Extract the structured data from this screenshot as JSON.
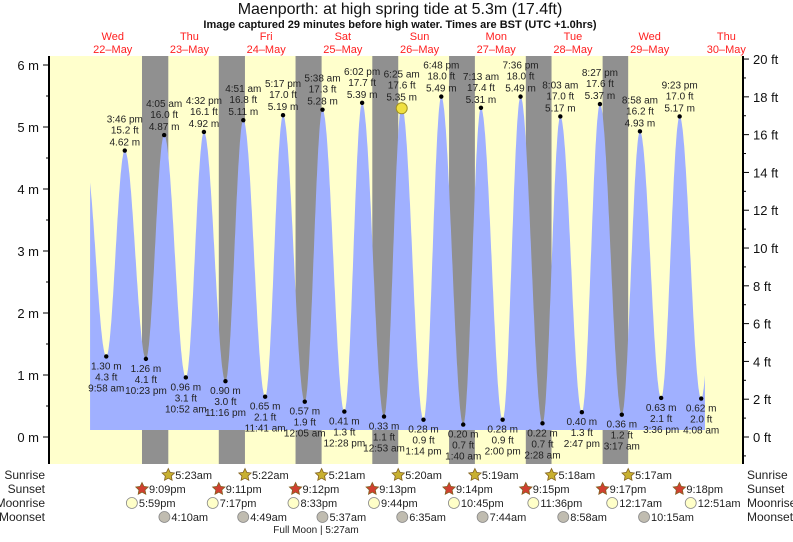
{
  "chart_data": {
    "type": "line",
    "title": "Maenporth: at high  spring tide at 5.3m (17.4ft)",
    "subtitle": "Image captured 29 minutes before high water. Times are BST (UTC +1.0hrs)",
    "days": [
      {
        "name": "Wed",
        "date": "22–May"
      },
      {
        "name": "Thu",
        "date": "23–May"
      },
      {
        "name": "Fri",
        "date": "24–May"
      },
      {
        "name": "Sat",
        "date": "25–May"
      },
      {
        "name": "Sun",
        "date": "26–May"
      },
      {
        "name": "Mon",
        "date": "27–May"
      },
      {
        "name": "Tue",
        "date": "28–May"
      },
      {
        "name": "Wed",
        "date": "29–May"
      },
      {
        "name": "Thu",
        "date": "30–May"
      }
    ],
    "y_left": {
      "unit": "m",
      "ticks": [
        "0 m",
        "1 m",
        "2 m",
        "3 m",
        "4 m",
        "5 m",
        "6 m"
      ],
      "range_m": [
        -0.45,
        6.15
      ]
    },
    "y_right": {
      "unit": "ft",
      "ticks": [
        "0 ft",
        "2 ft",
        "4 ft",
        "6 ft",
        "8 ft",
        "10 ft",
        "12 ft",
        "14 ft",
        "16 ft",
        "18 ft",
        "20 ft"
      ]
    },
    "tides": [
      {
        "type": "low",
        "day": 0,
        "time": "9:58 am",
        "m": "1.30 m",
        "ft": "4.3 ft",
        "v": 1.3
      },
      {
        "type": "high",
        "day": 0,
        "time": "3:46 pm",
        "m": "4.62 m",
        "ft": "15.2 ft",
        "v": 4.62
      },
      {
        "type": "low",
        "day": 0,
        "time": "10:23 pm",
        "m": "1.26 m",
        "ft": "4.1 ft",
        "v": 1.26
      },
      {
        "type": "high",
        "day": 1,
        "time": "4:05 am",
        "m": "4.87 m",
        "ft": "16.0 ft",
        "v": 4.87
      },
      {
        "type": "low",
        "day": 1,
        "time": "10:52 am",
        "m": "0.96 m",
        "ft": "3.1 ft",
        "v": 0.96
      },
      {
        "type": "high",
        "day": 1,
        "time": "4:32 pm",
        "m": "4.92 m",
        "ft": "16.1 ft",
        "v": 4.92
      },
      {
        "type": "low",
        "day": 1,
        "time": "11:16 pm",
        "m": "0.90 m",
        "ft": "3.0 ft",
        "v": 0.9
      },
      {
        "type": "high",
        "day": 2,
        "time": "4:51 am",
        "m": "5.11 m",
        "ft": "16.8 ft",
        "v": 5.11
      },
      {
        "type": "low",
        "day": 2,
        "time": "11:41 am",
        "m": "0.65 m",
        "ft": "2.1 ft",
        "v": 0.65
      },
      {
        "type": "high",
        "day": 2,
        "time": "5:17 pm",
        "m": "5.19 m",
        "ft": "17.0 ft",
        "v": 5.19
      },
      {
        "type": "low",
        "day": 3,
        "time": "12:05 am",
        "m": "0.57 m",
        "ft": "1.9 ft",
        "v": 0.57
      },
      {
        "type": "high",
        "day": 3,
        "time": "5:38 am",
        "m": "5.28 m",
        "ft": "17.3 ft",
        "v": 5.28
      },
      {
        "type": "low",
        "day": 3,
        "time": "12:28 pm",
        "m": "0.41 m",
        "ft": "1.3 ft",
        "v": 0.41
      },
      {
        "type": "high",
        "day": 3,
        "time": "6:02 pm",
        "m": "5.39 m",
        "ft": "17.7 ft",
        "v": 5.39
      },
      {
        "type": "low",
        "day": 4,
        "time": "12:53 am",
        "m": "0.33 m",
        "ft": "1.1 ft",
        "v": 0.33
      },
      {
        "type": "high",
        "day": 4,
        "time": "6:25 am",
        "m": "5.35 m",
        "ft": "17.6 ft",
        "v": 5.35
      },
      {
        "type": "low",
        "day": 4,
        "time": "1:14 pm",
        "m": "0.28 m",
        "ft": "0.9 ft",
        "v": 0.28
      },
      {
        "type": "high",
        "day": 4,
        "time": "6:48 pm",
        "m": "5.49 m",
        "ft": "18.0 ft",
        "v": 5.49
      },
      {
        "type": "low",
        "day": 5,
        "time": "1:40 am",
        "m": "0.20 m",
        "ft": "0.7 ft",
        "v": 0.2
      },
      {
        "type": "high",
        "day": 5,
        "time": "7:13 am",
        "m": "5.31 m",
        "ft": "17.4 ft",
        "v": 5.31
      },
      {
        "type": "low",
        "day": 5,
        "time": "2:00 pm",
        "m": "0.28 m",
        "ft": "0.9 ft",
        "v": 0.28
      },
      {
        "type": "high",
        "day": 5,
        "time": "7:36 pm",
        "m": "5.49 m",
        "ft": "18.0 ft",
        "v": 5.49
      },
      {
        "type": "low",
        "day": 6,
        "time": "2:28 am",
        "m": "0.22 m",
        "ft": "0.7 ft",
        "v": 0.22
      },
      {
        "type": "high",
        "day": 6,
        "time": "8:03 am",
        "m": "5.17 m",
        "ft": "17.0 ft",
        "v": 5.17
      },
      {
        "type": "low",
        "day": 6,
        "time": "2:47 pm",
        "m": "0.40 m",
        "ft": "1.3 ft",
        "v": 0.4
      },
      {
        "type": "high",
        "day": 6,
        "time": "8:27 pm",
        "m": "5.37 m",
        "ft": "17.6 ft",
        "v": 5.37
      },
      {
        "type": "low",
        "day": 7,
        "time": "3:17 am",
        "m": "0.36 m",
        "ft": "1.2 ft",
        "v": 0.36
      },
      {
        "type": "high",
        "day": 7,
        "time": "8:58 am",
        "m": "4.93 m",
        "ft": "16.2 ft",
        "v": 4.93
      },
      {
        "type": "low",
        "day": 7,
        "time": "3:36 pm",
        "m": "0.63 m",
        "ft": "2.1 ft",
        "v": 0.63
      },
      {
        "type": "high",
        "day": 7,
        "time": "9:23 pm",
        "m": "5.17 m",
        "ft": "17.0 ft",
        "v": 5.17
      },
      {
        "type": "low",
        "day": 8,
        "time": "4:08 am",
        "m": "0.62 m",
        "ft": "2.0 ft",
        "v": 0.62
      }
    ],
    "current_marker_index": 15,
    "almanac": {
      "labels": [
        "Sunrise",
        "Sunset",
        "Moonrise",
        "Moonset"
      ],
      "sunrise": [
        {
          "day": 1,
          "time": "5:23am"
        },
        {
          "day": 2,
          "time": "5:22am"
        },
        {
          "day": 3,
          "time": "5:21am"
        },
        {
          "day": 4,
          "time": "5:20am"
        },
        {
          "day": 5,
          "time": "5:19am"
        },
        {
          "day": 6,
          "time": "5:18am"
        },
        {
          "day": 7,
          "time": "5:17am"
        }
      ],
      "sunset": [
        {
          "day": 0,
          "time": "9:09pm"
        },
        {
          "day": 1,
          "time": "9:11pm"
        },
        {
          "day": 2,
          "time": "9:12pm"
        },
        {
          "day": 3,
          "time": "9:13pm"
        },
        {
          "day": 4,
          "time": "9:14pm"
        },
        {
          "day": 5,
          "time": "9:15pm"
        },
        {
          "day": 6,
          "time": "9:17pm"
        },
        {
          "day": 7,
          "time": "9:18pm"
        }
      ],
      "moonrise": [
        {
          "day": 0,
          "time": "5:59pm"
        },
        {
          "day": 1,
          "time": "7:17pm"
        },
        {
          "day": 2,
          "time": "8:33pm"
        },
        {
          "day": 3,
          "time": "9:44pm"
        },
        {
          "day": 4,
          "time": "10:45pm"
        },
        {
          "day": 5,
          "time": "11:36pm"
        },
        {
          "day": 7,
          "time": "12:17am"
        },
        {
          "day": 8,
          "time": "12:51am"
        }
      ],
      "moonset": [
        {
          "day": 1,
          "time": "4:10am"
        },
        {
          "day": 2,
          "time": "4:49am"
        },
        {
          "day": 3,
          "time": "5:37am"
        },
        {
          "day": 4,
          "time": "6:35am"
        },
        {
          "day": 5,
          "time": "7:44am"
        },
        {
          "day": 6,
          "time": "8:58am"
        },
        {
          "day": 7,
          "time": "10:15am"
        }
      ],
      "moon_phase": "Full Moon | 5:27am"
    },
    "colors": {
      "day": "#ffffcc",
      "night": "#909090",
      "water": "#a0b0ff",
      "day_label": "#ff2020",
      "sunrise": "#c8b030",
      "sunset": "#d04030",
      "moon": "#ffffc8",
      "moonset": "#c0bcb0",
      "marker": "#f0e040"
    }
  }
}
